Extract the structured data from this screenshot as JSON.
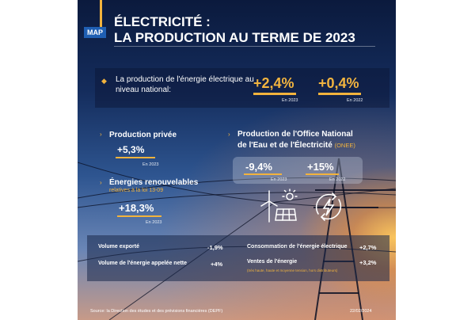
{
  "header": {
    "logo": "MAP",
    "title_line1": "ÉLECTRICITÉ :",
    "title_line2": "LA PRODUCTION AU TERME DE 2023"
  },
  "national": {
    "label": "La production de l'énergie électrique au niveau national:",
    "value_2023": "+2,4%",
    "caption_2023": "En 2023",
    "value_2022": "+0,4%",
    "caption_2022": "En 2022"
  },
  "private": {
    "label": "Production privée",
    "value": "+5,3%",
    "caption": "En 2023"
  },
  "renewables": {
    "label": "Énergies renouvelables",
    "sub_label": "relatives à la loi 13-09",
    "value": "+18,3%",
    "caption": "En 2023"
  },
  "onee": {
    "label_line1": "Production de l'Office National",
    "label_line2": "de l'Eau et de l'Électricité",
    "tag": "(ONEE)",
    "value_2023": "-9,4%",
    "caption_2023": "En 2023",
    "value_2022": "+15%",
    "caption_2022": "En 2022"
  },
  "metrics": {
    "export_label": "Volume exporté",
    "export_value": "-1,9%",
    "net_label": "Volume de l'énergie appelée nette",
    "net_value": "+4%",
    "consumption_label": "Consommation de l'énergie électrique",
    "consumption_value": "+2,7%",
    "sales_label": "Ventes de l'énergie",
    "sales_value": "+3,2%",
    "sales_note": "(très haute, haute et moyenne tension, hors distributeurs)"
  },
  "footer": {
    "source": "Source: la Direction des études et des prévisions financières (DEPF)",
    "date": "22/02/2024"
  },
  "colors": {
    "accent": "#f2b33d",
    "navy": "#0b1a3d",
    "logo_blue": "#1f5fb3"
  },
  "icons": [
    "renewable-energy-icon",
    "electricity-bolt-icon"
  ]
}
